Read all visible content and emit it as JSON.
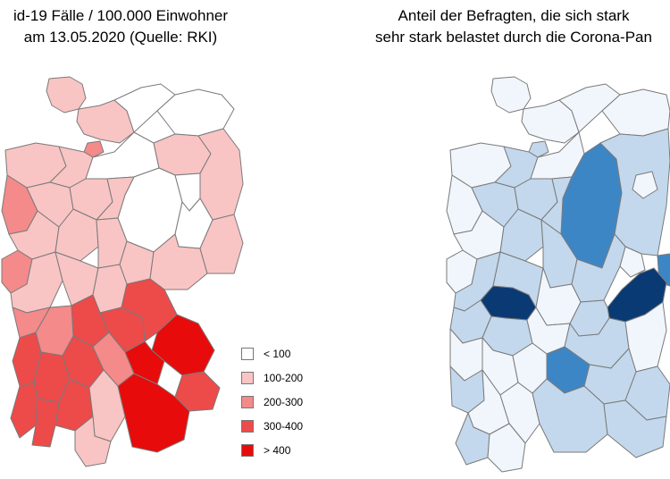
{
  "left_map": {
    "title_line1": "id-19 Fälle / 100.000 Einwohner",
    "title_line2": "am 13.05.2020 (Quelle: RKI)",
    "legend": [
      {
        "label": "< 100",
        "color": "#ffffff"
      },
      {
        "label": "100-200",
        "color": "#f9c4c4"
      },
      {
        "label": "200-300",
        "color": "#f48a8a"
      },
      {
        "label": "300-400",
        "color": "#ed4a4a"
      },
      {
        "label": "> 400",
        "color": "#e80b0b"
      }
    ]
  },
  "right_map": {
    "title_line1": "Anteil der Befragten, die sich stark",
    "title_line2": "sehr stark belastet durch die Corona-Pan",
    "colors": {
      "lowest": "#f1f6fc",
      "low": "#c3d8ec",
      "medium": "#3d86c6",
      "high": "#0a3a73"
    }
  }
}
